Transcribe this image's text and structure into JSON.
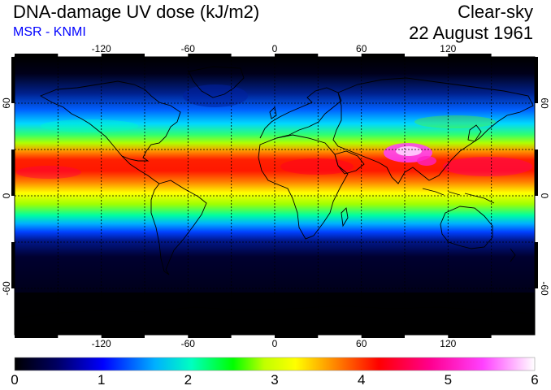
{
  "header": {
    "title": "DNA-damage UV dose (kJ/m2)",
    "credit": "MSR - KNMI",
    "sky_condition": "Clear-sky",
    "date": "22 August 1961"
  },
  "map": {
    "projection": "plate carree",
    "lon_range": [
      -180,
      180
    ],
    "lat_range": [
      -90,
      90
    ],
    "lon_ticks": [
      "-120",
      "-60",
      "0",
      "60",
      "120"
    ],
    "lat_ticks": [
      "60",
      "0",
      "-60"
    ],
    "gridlines": "dashed",
    "coastlines": true
  },
  "colorbar": {
    "tick_labels": [
      "0",
      "1",
      "2",
      "3",
      "4",
      "5",
      "6"
    ],
    "range": [
      0,
      6
    ],
    "colors": [
      "#000000",
      "#000060",
      "#0000ff",
      "#00b0ff",
      "#00ffc0",
      "#00ff00",
      "#c0ff00",
      "#ffff00",
      "#ff8000",
      "#ff0000",
      "#ff0090",
      "#ff40ff",
      "#ffffff"
    ]
  }
}
